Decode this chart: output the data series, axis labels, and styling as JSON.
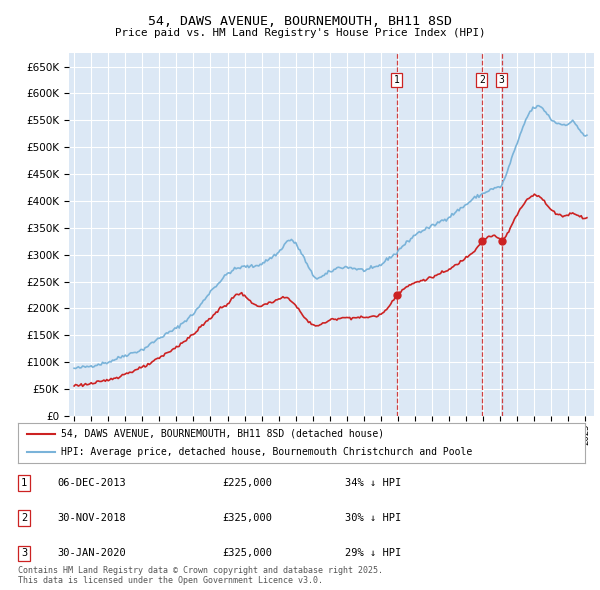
{
  "title": "54, DAWS AVENUE, BOURNEMOUTH, BH11 8SD",
  "subtitle": "Price paid vs. HM Land Registry's House Price Index (HPI)",
  "ylim": [
    0,
    675000
  ],
  "xlim_start": 1994.7,
  "xlim_end": 2025.5,
  "background_color": "#dce8f5",
  "grid_color": "#ffffff",
  "hpi_color": "#7ab3d9",
  "price_color": "#cc2222",
  "vline_color": "#cc2222",
  "legend_label_price": "54, DAWS AVENUE, BOURNEMOUTH, BH11 8SD (detached house)",
  "legend_label_hpi": "HPI: Average price, detached house, Bournemouth Christchurch and Poole",
  "transactions": [
    {
      "num": 1,
      "date": "06-DEC-2013",
      "price": 225000,
      "pct": "34%",
      "year": 2013.917
    },
    {
      "num": 2,
      "date": "30-NOV-2018",
      "price": 325000,
      "pct": "30%",
      "year": 2018.917
    },
    {
      "num": 3,
      "date": "30-JAN-2020",
      "price": 325000,
      "pct": "29%",
      "year": 2020.083
    }
  ],
  "footer": "Contains HM Land Registry data © Crown copyright and database right 2025.\nThis data is licensed under the Open Government Licence v3.0."
}
